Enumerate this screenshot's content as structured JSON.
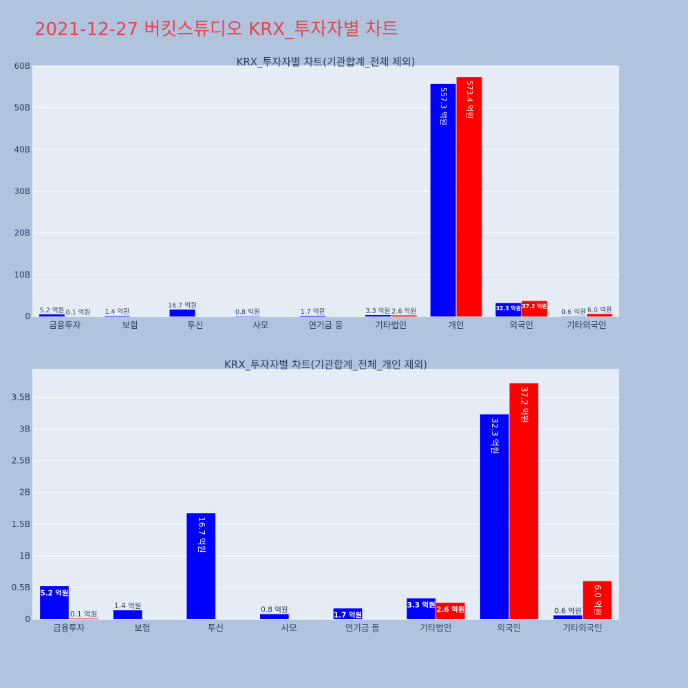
{
  "page_title": "2021-12-27 버킷스튜디오 KRX_투자자별 차트",
  "colors": {
    "background": "#b0c4de",
    "plot_bg": "#e5ecf6",
    "title": "#e8434f",
    "series_blue": "#0000ff",
    "series_red": "#ff0000",
    "text": "#2a3f5f"
  },
  "chart_data": [
    {
      "type": "bar",
      "title": "KRX_투자자별 차트(기관합계_전체 제외)",
      "categories": [
        "금융투자",
        "보험",
        "투신",
        "사모",
        "연기금 등",
        "기타법인",
        "개인",
        "외국인",
        "기타외국인"
      ],
      "series": [
        {
          "color": "#0000ff",
          "values": [
            0.52,
            0.14,
            1.67,
            0.08,
            0.17,
            0.33,
            55.73,
            3.23,
            0.06
          ],
          "labels": [
            "5.2 억원",
            "1.4 억원",
            "16.7 억원",
            "0.8 억원",
            "1.7 억원",
            "3.3 억원",
            "557.3 억원",
            "32.3 억원",
            "0.6 억원"
          ]
        },
        {
          "color": "#ff0000",
          "values": [
            0.01,
            0,
            0,
            0,
            0,
            0.26,
            57.34,
            3.72,
            0.6
          ],
          "labels": [
            "0.1 억원",
            "",
            "",
            "",
            "",
            "2.6 억원",
            "573.4 억원",
            "37.2 억원",
            "6.0 억원"
          ]
        }
      ],
      "yticks": [
        0,
        10,
        20,
        30,
        40,
        50,
        60
      ],
      "ytick_labels": [
        "0",
        "10B",
        "20B",
        "30B",
        "40B",
        "50B",
        "60B"
      ],
      "ylim": [
        0,
        60
      ],
      "grid": true
    },
    {
      "type": "bar",
      "title": "KRX_투자자별 차트(기관합계_전체_개인 제외)",
      "categories": [
        "금융투자",
        "보험",
        "투신",
        "사모",
        "연기금 등",
        "기타법인",
        "외국인",
        "기타외국인"
      ],
      "series": [
        {
          "color": "#0000ff",
          "values": [
            0.52,
            0.14,
            1.67,
            0.08,
            0.17,
            0.33,
            3.23,
            0.06
          ],
          "labels": [
            "5.2 억원",
            "1.4 억원",
            "16.7 억원",
            "0.8 억원",
            "1.7 억원",
            "3.3 억원",
            "32.3 억원",
            "0.6 억원"
          ]
        },
        {
          "color": "#ff0000",
          "values": [
            0.01,
            0,
            0,
            0,
            0,
            0.26,
            3.72,
            0.6
          ],
          "labels": [
            "0.1 억원",
            "",
            "",
            "",
            "",
            "2.6 억원",
            "37.2 억원",
            "6.0 억원"
          ]
        }
      ],
      "yticks": [
        0,
        0.5,
        1,
        1.5,
        2,
        2.5,
        3,
        3.5
      ],
      "ytick_labels": [
        "0",
        "0.5B",
        "1B",
        "1.5B",
        "2B",
        "2.5B",
        "3B",
        "3.5B"
      ],
      "ylim": [
        0,
        3.95
      ],
      "grid": true
    }
  ]
}
